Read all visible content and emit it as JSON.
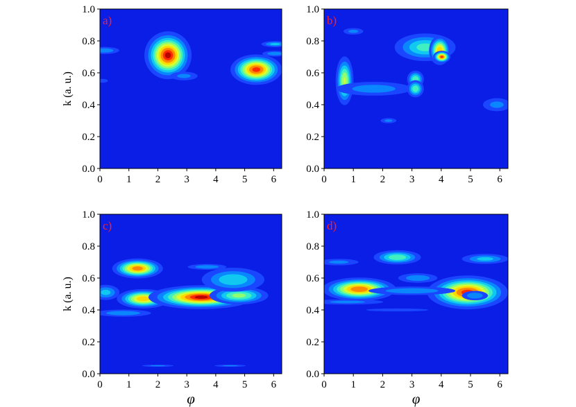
{
  "chart_data": [
    {
      "type": "heatmap",
      "panel_label": "a)",
      "ylabel": "k (a. u.)",
      "xlabel": "",
      "xlim": [
        0,
        6.28
      ],
      "ylim": [
        0,
        1.0
      ],
      "xticks": [
        "0",
        "1",
        "2",
        "3",
        "4",
        "5",
        "6"
      ],
      "yticks": [
        "0.0",
        "0.2",
        "0.4",
        "0.6",
        "0.8",
        "1.0"
      ],
      "colormap": "jet",
      "background_color": "#0a1ee6",
      "blobs": [
        {
          "x": 2.35,
          "y": 0.71,
          "sx": 0.38,
          "sy": 0.07,
          "a": 1.0
        },
        {
          "x": 5.4,
          "y": 0.62,
          "sx": 0.42,
          "sy": 0.045,
          "a": 0.95
        },
        {
          "x": 2.9,
          "y": 0.58,
          "sx": 0.35,
          "sy": 0.02,
          "a": 0.25
        },
        {
          "x": 6.05,
          "y": 0.78,
          "sx": 0.3,
          "sy": 0.012,
          "a": 0.35
        },
        {
          "x": 6.05,
          "y": 0.72,
          "sx": 0.3,
          "sy": 0.012,
          "a": 0.3
        },
        {
          "x": 0.15,
          "y": 0.74,
          "sx": 0.35,
          "sy": 0.015,
          "a": 0.3
        },
        {
          "x": 0.1,
          "y": 0.55,
          "sx": 0.15,
          "sy": 0.01,
          "a": 0.2
        }
      ]
    },
    {
      "type": "heatmap",
      "panel_label": "b)",
      "ylabel": "",
      "xlabel": "",
      "xlim": [
        0,
        6.28
      ],
      "ylim": [
        0,
        1.0
      ],
      "xticks": [
        "0",
        "1",
        "2",
        "3",
        "4",
        "5",
        "6"
      ],
      "yticks": [
        "0.0",
        "0.2",
        "0.4",
        "0.6",
        "0.8",
        "1.0"
      ],
      "colormap": "jet",
      "background_color": "#0a1ee6",
      "blobs": [
        {
          "x": 0.7,
          "y": 0.55,
          "sx": 0.16,
          "sy": 0.08,
          "a": 0.62
        },
        {
          "x": 1.7,
          "y": 0.5,
          "sx": 0.9,
          "sy": 0.03,
          "a": 0.28
        },
        {
          "x": 3.45,
          "y": 0.76,
          "sx": 0.6,
          "sy": 0.05,
          "a": 0.45
        },
        {
          "x": 3.95,
          "y": 0.74,
          "sx": 0.18,
          "sy": 0.045,
          "a": 0.8
        },
        {
          "x": 4.02,
          "y": 0.7,
          "sx": 0.14,
          "sy": 0.018,
          "a": 0.95
        },
        {
          "x": 3.12,
          "y": 0.56,
          "sx": 0.16,
          "sy": 0.03,
          "a": 0.5
        },
        {
          "x": 3.12,
          "y": 0.5,
          "sx": 0.16,
          "sy": 0.03,
          "a": 0.5
        },
        {
          "x": 1.0,
          "y": 0.86,
          "sx": 0.25,
          "sy": 0.015,
          "a": 0.25
        },
        {
          "x": 2.2,
          "y": 0.3,
          "sx": 0.2,
          "sy": 0.012,
          "a": 0.25
        },
        {
          "x": 5.9,
          "y": 0.4,
          "sx": 0.35,
          "sy": 0.03,
          "a": 0.25
        }
      ]
    },
    {
      "type": "heatmap",
      "panel_label": "c)",
      "ylabel": "k (a. u.)",
      "xlabel": "φ",
      "xlim": [
        0,
        6.28
      ],
      "ylim": [
        0,
        1.0
      ],
      "xticks": [
        "0",
        "1",
        "2",
        "3",
        "4",
        "5",
        "6"
      ],
      "yticks": [
        "0.0",
        "0.2",
        "0.4",
        "0.6",
        "0.8",
        "1.0"
      ],
      "colormap": "jet",
      "background_color": "#0a1ee6",
      "blobs": [
        {
          "x": 1.3,
          "y": 0.66,
          "sx": 0.42,
          "sy": 0.03,
          "a": 0.88
        },
        {
          "x": 1.5,
          "y": 0.47,
          "sx": 0.45,
          "sy": 0.03,
          "a": 0.8
        },
        {
          "x": 3.5,
          "y": 0.48,
          "sx": 0.85,
          "sy": 0.035,
          "a": 1.0
        },
        {
          "x": 4.8,
          "y": 0.49,
          "sx": 0.55,
          "sy": 0.03,
          "a": 0.55
        },
        {
          "x": 4.6,
          "y": 0.59,
          "sx": 0.65,
          "sy": 0.045,
          "a": 0.4
        },
        {
          "x": 0.2,
          "y": 0.51,
          "sx": 0.3,
          "sy": 0.03,
          "a": 0.35
        },
        {
          "x": 0.8,
          "y": 0.38,
          "sx": 0.65,
          "sy": 0.015,
          "a": 0.3
        },
        {
          "x": 3.7,
          "y": 0.67,
          "sx": 0.45,
          "sy": 0.012,
          "a": 0.3
        },
        {
          "x": 2.0,
          "y": 0.05,
          "sx": 0.4,
          "sy": 0.005,
          "a": 0.25
        },
        {
          "x": 4.5,
          "y": 0.05,
          "sx": 0.4,
          "sy": 0.005,
          "a": 0.25
        }
      ]
    },
    {
      "type": "heatmap",
      "panel_label": "d)",
      "ylabel": "",
      "xlabel": "φ",
      "xlim": [
        0,
        6.28
      ],
      "ylim": [
        0,
        1.0
      ],
      "xticks": [
        "0",
        "1",
        "2",
        "3",
        "4",
        "5",
        "6"
      ],
      "yticks": [
        "0.0",
        "0.2",
        "0.4",
        "0.6",
        "0.8",
        "1.0"
      ],
      "colormap": "jet",
      "background_color": "#0a1ee6",
      "blobs": [
        {
          "x": 1.2,
          "y": 0.53,
          "sx": 0.6,
          "sy": 0.035,
          "a": 0.9
        },
        {
          "x": 4.9,
          "y": 0.51,
          "sx": 0.65,
          "sy": 0.05,
          "a": 0.95
        },
        {
          "x": 5.15,
          "y": 0.49,
          "sx": 0.3,
          "sy": 0.02,
          "a": 0.3
        },
        {
          "x": 2.5,
          "y": 0.73,
          "sx": 0.45,
          "sy": 0.025,
          "a": 0.5
        },
        {
          "x": 5.5,
          "y": 0.72,
          "sx": 0.5,
          "sy": 0.02,
          "a": 0.35
        },
        {
          "x": 3.2,
          "y": 0.6,
          "sx": 0.45,
          "sy": 0.02,
          "a": 0.3
        },
        {
          "x": 3.0,
          "y": 0.52,
          "sx": 1.0,
          "sy": 0.018,
          "a": 0.3
        },
        {
          "x": 0.8,
          "y": 0.45,
          "sx": 0.9,
          "sy": 0.012,
          "a": 0.25
        },
        {
          "x": 0.5,
          "y": 0.7,
          "sx": 0.5,
          "sy": 0.015,
          "a": 0.25
        },
        {
          "x": 2.5,
          "y": 0.4,
          "sx": 0.9,
          "sy": 0.008,
          "a": 0.2
        }
      ]
    }
  ]
}
